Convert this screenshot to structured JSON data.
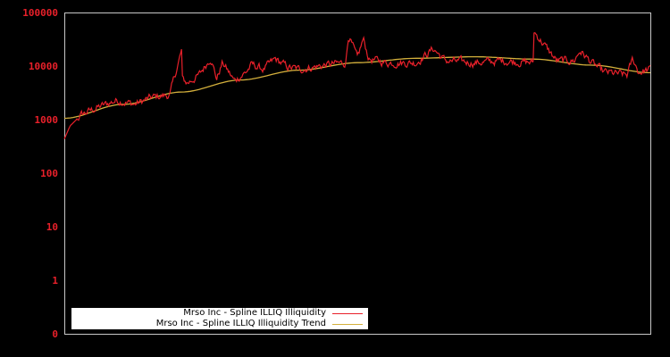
{
  "chart_data": {
    "type": "line",
    "title": "",
    "xlabel": "",
    "ylabel": "",
    "y_scale": "log",
    "ylim": [
      0,
      100000
    ],
    "yticks": [
      "100000",
      "10000",
      "1000",
      "100",
      "10",
      "1",
      "0"
    ],
    "xticks": [],
    "grid": false,
    "legend_position": "lower left",
    "background": "#000000",
    "frame_color": "#c8c8c8",
    "tick_label_color": "#e8202a",
    "series": [
      {
        "name": "Mrso Inc - Spline ILLIQ Illiquidity",
        "color": "#e8202a",
        "anchors_x_fraction": [
          0.0,
          0.01,
          0.03,
          0.06,
          0.09,
          0.12,
          0.15,
          0.18,
          0.2,
          0.195,
          0.2,
          0.21,
          0.23,
          0.25,
          0.26,
          0.27,
          0.29,
          0.31,
          0.32,
          0.34,
          0.36,
          0.38,
          0.4,
          0.45,
          0.48,
          0.485,
          0.5,
          0.51,
          0.52,
          0.55,
          0.6,
          0.63,
          0.65,
          0.7,
          0.75,
          0.8,
          0.8,
          0.84,
          0.87,
          0.88,
          0.9,
          0.92,
          0.94,
          0.96,
          0.97,
          0.98,
          1.0
        ],
        "anchors_value": [
          450,
          800,
          1300,
          1800,
          2400,
          2000,
          2700,
          3000,
          20000,
          20000,
          6000,
          5000,
          7000,
          15000,
          6000,
          12000,
          5500,
          8000,
          11000,
          9000,
          14000,
          10000,
          9000,
          11000,
          12000,
          40000,
          14000,
          33000,
          14000,
          12000,
          12000,
          22000,
          13000,
          12000,
          13000,
          12000,
          48000,
          13000,
          13000,
          20000,
          12000,
          8000,
          7500,
          7000,
          14000,
          8000,
          9000
        ],
        "approx_points": 650
      },
      {
        "name": "Mrso Inc - Spline ILLIQ Illiquidity Trend",
        "color": "#d4b03c",
        "x_fraction": [
          0.0,
          0.1,
          0.2,
          0.3,
          0.4,
          0.5,
          0.6,
          0.7,
          0.8,
          0.9,
          1.0
        ],
        "values": [
          1100,
          2000,
          3400,
          5700,
          8700,
          12000,
          14500,
          15500,
          14000,
          10800,
          7800
        ]
      }
    ]
  },
  "legend": {
    "items": [
      {
        "label": "Mrso Inc - Spline ILLIQ Illiquidity",
        "color": "#e8202a"
      },
      {
        "label": "Mrso Inc - Spline ILLIQ Illiquidity Trend",
        "color": "#d4b03c"
      }
    ]
  }
}
